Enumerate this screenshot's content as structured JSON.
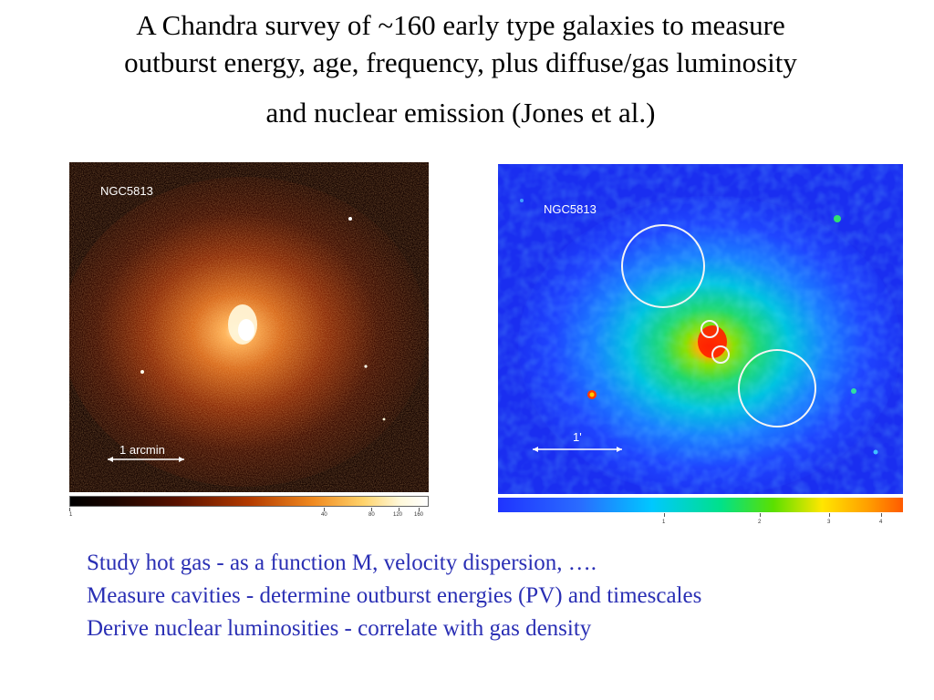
{
  "title": {
    "line1": "A Chandra survey of ~160 early type galaxies to measure",
    "line2": "outburst energy, age, frequency, plus diffuse/gas luminosity",
    "line3": "and nuclear emission (Jones et al.)"
  },
  "left_image": {
    "label": "NGC5813",
    "scale_label": "1  arcmin",
    "colorbar_ticks": [
      "1",
      "40",
      "80",
      "120",
      "160"
    ]
  },
  "right_image": {
    "label": "NGC5813",
    "scale_label": "1'",
    "colorbar_ticks": [
      "1",
      "2",
      "3",
      "4"
    ]
  },
  "bullets": [
    "Study hot gas - as a function M, velocity dispersion, ….",
    "Measure cavities - determine outburst energies (PV)  and timescales",
    "Derive nuclear luminosities - correlate with gas density"
  ],
  "colors": {
    "bullet_text": "#2a2fb4",
    "left_bg": "#140300",
    "right_bg": "#1a2ef0"
  }
}
